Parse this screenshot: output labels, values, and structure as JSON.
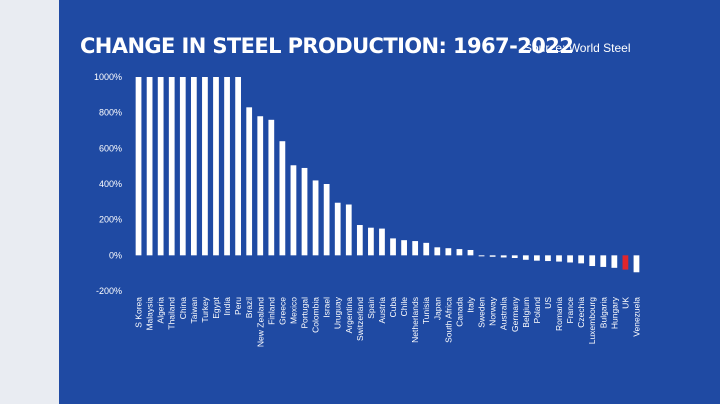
{
  "header": {
    "title": "CHANGE IN STEEL PRODUCTION: 1967-2022",
    "source": "Source: World Steel"
  },
  "colors": {
    "background": "#1f4aa3",
    "bar": "#ffffff",
    "highlight": "#e1262c"
  },
  "chart_data": {
    "type": "bar",
    "title": "CHANGE IN STEEL PRODUCTION: 1967-2022",
    "xlabel": "",
    "ylabel": "",
    "ylim": [
      -200,
      1000
    ],
    "yticks": [
      -200,
      0,
      200,
      400,
      600,
      800,
      1000
    ],
    "ytick_labels": [
      "-200%",
      "0%",
      "200%",
      "400%",
      "600%",
      "800%",
      "1000%"
    ],
    "highlight": "UK",
    "categories": [
      "S Korea",
      "Malaysia",
      "Algeria",
      "Thailand",
      "China",
      "Taiwan",
      "Turkey",
      "Egypt",
      "India",
      "Peru",
      "Brazil",
      "New Zealand",
      "Finland",
      "Greece",
      "Mexico",
      "Portugal",
      "Colombia",
      "Israel",
      "Uruguay",
      "Argentina",
      "Switzerland",
      "Spain",
      "Austria",
      "Cuba",
      "Chile",
      "Netherlands",
      "Tunisia",
      "Japan",
      "South Africa",
      "Canada",
      "Italy",
      "Sweden",
      "Norway",
      "Australia",
      "Germany",
      "Belgium",
      "Poland",
      "US",
      "Romania",
      "France",
      "Czechia",
      "Luxembourg",
      "Bulgaria",
      "Hungary",
      "UK",
      "Venezuela"
    ],
    "values": [
      1000,
      1000,
      1000,
      1000,
      1000,
      1000,
      1000,
      1000,
      1000,
      1000,
      830,
      780,
      760,
      640,
      505,
      490,
      420,
      400,
      295,
      285,
      170,
      155,
      150,
      95,
      85,
      80,
      70,
      45,
      40,
      35,
      30,
      -5,
      -8,
      -12,
      -15,
      -25,
      -30,
      -32,
      -35,
      -40,
      -45,
      -60,
      -65,
      -70,
      -80,
      -95
    ]
  }
}
